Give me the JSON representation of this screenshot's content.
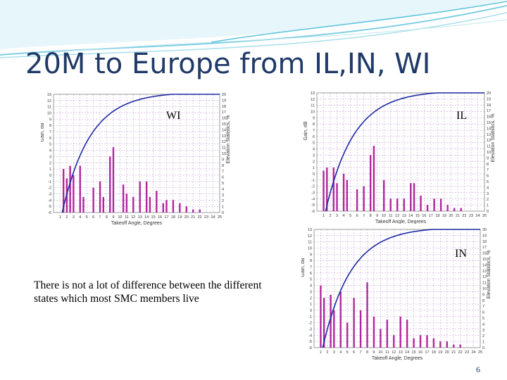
{
  "slide": {
    "title": "20M to Europe from IL,IN, WI",
    "note": "There is not a lot of difference between the different states which most SMC members live",
    "page_number": "6",
    "colors": {
      "title": "#1f3a68",
      "swoosh": "#7fcfe3",
      "bars": "#b0269c",
      "curve": "#1a2aa0",
      "grid": "#c8a2d8"
    }
  },
  "chart_data": [
    {
      "type": "bar",
      "name": "WI",
      "xlabel": "Takeoff Angle, Degrees",
      "ylabel": "Gain, dB",
      "y2label": "Elevation Statistics, %",
      "x": [
        1,
        2,
        3,
        4,
        5,
        6,
        7,
        8,
        9,
        10,
        11,
        12,
        13,
        14,
        15,
        16,
        17,
        18,
        19,
        20,
        21,
        22,
        23,
        24,
        25
      ],
      "ylim": [
        -6,
        13
      ],
      "y2lim": [
        0,
        20
      ],
      "bars": [
        {
          "x": 1.5,
          "gain": 1.0
        },
        {
          "x": 2.0,
          "gain": -0.5
        },
        {
          "x": 2.5,
          "gain": 1.5
        },
        {
          "x": 3.0,
          "gain": 0.0
        },
        {
          "x": 4.0,
          "gain": 1.5
        },
        {
          "x": 4.5,
          "gain": -3.5
        },
        {
          "x": 6.0,
          "gain": -2.0
        },
        {
          "x": 7.0,
          "gain": -1.0
        },
        {
          "x": 7.5,
          "gain": -3.5
        },
        {
          "x": 8.5,
          "gain": 3.0
        },
        {
          "x": 9.0,
          "gain": 4.5
        },
        {
          "x": 10.5,
          "gain": -1.5
        },
        {
          "x": 11.0,
          "gain": -3.0
        },
        {
          "x": 12.0,
          "gain": -3.5
        },
        {
          "x": 13.0,
          "gain": -1.0
        },
        {
          "x": 14.0,
          "gain": -1.0
        },
        {
          "x": 14.5,
          "gain": -3.5
        },
        {
          "x": 15.5,
          "gain": -2.5
        },
        {
          "x": 16.5,
          "gain": -4.5
        },
        {
          "x": 17.0,
          "gain": -4.0
        },
        {
          "x": 18.0,
          "gain": -4.0
        },
        {
          "x": 19.0,
          "gain": -4.5
        },
        {
          "x": 20.0,
          "gain": -5.0
        },
        {
          "x": 21.0,
          "gain": -5.5
        },
        {
          "x": 22.0,
          "gain": -5.5
        }
      ],
      "curve_label": "Elevation Statistics, %"
    },
    {
      "type": "bar",
      "name": "IL",
      "xlabel": "Takeoff Angle, Degrees",
      "ylabel": "Gain, dB",
      "y2label": "Elevation Statistics, %",
      "x": [
        1,
        2,
        3,
        4,
        5,
        6,
        7,
        8,
        9,
        10,
        11,
        12,
        13,
        14,
        15,
        16,
        17,
        18,
        19,
        20,
        21,
        22,
        23,
        24,
        25
      ],
      "ylim": [
        -6,
        13
      ],
      "y2lim": [
        0,
        20
      ],
      "bars": [
        {
          "x": 1.0,
          "gain": 0.5
        },
        {
          "x": 1.5,
          "gain": 1.0
        },
        {
          "x": 2.5,
          "gain": 1.0
        },
        {
          "x": 3.0,
          "gain": -1.5
        },
        {
          "x": 4.0,
          "gain": 0.0
        },
        {
          "x": 4.5,
          "gain": -1.0
        },
        {
          "x": 6.0,
          "gain": -2.5
        },
        {
          "x": 7.0,
          "gain": -2.0
        },
        {
          "x": 8.0,
          "gain": 3.0
        },
        {
          "x": 8.5,
          "gain": 4.5
        },
        {
          "x": 10.0,
          "gain": -1.0
        },
        {
          "x": 11.0,
          "gain": -4.0
        },
        {
          "x": 12.0,
          "gain": -4.0
        },
        {
          "x": 13.0,
          "gain": -4.0
        },
        {
          "x": 14.0,
          "gain": -1.5
        },
        {
          "x": 14.5,
          "gain": -1.5
        },
        {
          "x": 15.5,
          "gain": -3.5
        },
        {
          "x": 16.5,
          "gain": -5.0
        },
        {
          "x": 17.5,
          "gain": -4.0
        },
        {
          "x": 18.5,
          "gain": -4.0
        },
        {
          "x": 19.5,
          "gain": -5.0
        },
        {
          "x": 20.5,
          "gain": -5.5
        },
        {
          "x": 21.5,
          "gain": -5.5
        }
      ],
      "curve_label": "Elevation Statistics, %"
    },
    {
      "type": "bar",
      "name": "IN",
      "xlabel": "Takeoff Angle, Degrees",
      "ylabel": "Gain, dB",
      "y2label": "Elevation Statistics, %",
      "x": [
        1,
        2,
        3,
        4,
        5,
        6,
        7,
        8,
        9,
        10,
        11,
        12,
        13,
        14,
        15,
        16,
        17,
        18,
        19,
        20,
        21,
        22,
        23,
        24,
        25
      ],
      "ylim": [
        -6,
        13
      ],
      "y2lim": [
        0,
        20
      ],
      "bars": [
        {
          "x": 1.0,
          "gain": 4.0
        },
        {
          "x": 1.5,
          "gain": 2.0
        },
        {
          "x": 2.5,
          "gain": 2.5
        },
        {
          "x": 3.0,
          "gain": 0.0
        },
        {
          "x": 4.0,
          "gain": 3.0
        },
        {
          "x": 5.0,
          "gain": -2.0
        },
        {
          "x": 6.0,
          "gain": 2.0
        },
        {
          "x": 7.0,
          "gain": 0.0
        },
        {
          "x": 8.0,
          "gain": 4.5
        },
        {
          "x": 9.0,
          "gain": -1.0
        },
        {
          "x": 10.0,
          "gain": -3.0
        },
        {
          "x": 11.0,
          "gain": -1.5
        },
        {
          "x": 12.0,
          "gain": -4.0
        },
        {
          "x": 13.0,
          "gain": -1.0
        },
        {
          "x": 14.0,
          "gain": -1.5
        },
        {
          "x": 15.0,
          "gain": -4.5
        },
        {
          "x": 16.0,
          "gain": -4.0
        },
        {
          "x": 17.0,
          "gain": -4.0
        },
        {
          "x": 18.0,
          "gain": -4.5
        },
        {
          "x": 19.0,
          "gain": -5.0
        },
        {
          "x": 20.0,
          "gain": -5.0
        },
        {
          "x": 21.0,
          "gain": -5.5
        },
        {
          "x": 22.0,
          "gain": -5.5
        }
      ],
      "curve_label": "Elevation Statistics, %"
    }
  ]
}
